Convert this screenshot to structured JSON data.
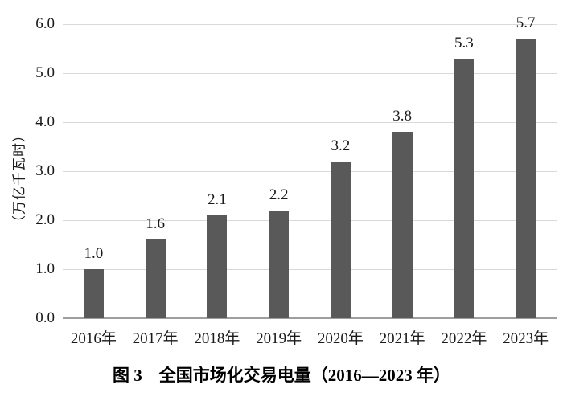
{
  "chart_data": {
    "type": "bar",
    "categories": [
      "2016年",
      "2017年",
      "2018年",
      "2019年",
      "2020年",
      "2021年",
      "2022年",
      "2023年"
    ],
    "values": [
      1.0,
      1.6,
      2.1,
      2.2,
      3.2,
      3.8,
      5.3,
      5.7
    ],
    "data_labels": [
      "1.0",
      "1.6",
      "2.1",
      "2.2",
      "3.2",
      "3.8",
      "5.3",
      "5.7"
    ],
    "title": "图 3　全国市场化交易电量（2016—2023 年）",
    "xlabel": "",
    "ylabel": "（万亿千瓦时）",
    "ylim": [
      0,
      6
    ],
    "yticks": [
      "0.0",
      "1.0",
      "2.0",
      "3.0",
      "4.0",
      "5.0",
      "6.0"
    ],
    "grid": "horizontal-gridlines-on",
    "legend": "none",
    "bar_color": "#595959",
    "gridline_color": "#d9d9d9",
    "axis_line_color": "#9e9e9e"
  },
  "caption": "图 3　全国市场化交易电量（2016—2023 年）",
  "y_axis_title": "（万亿千瓦时）"
}
